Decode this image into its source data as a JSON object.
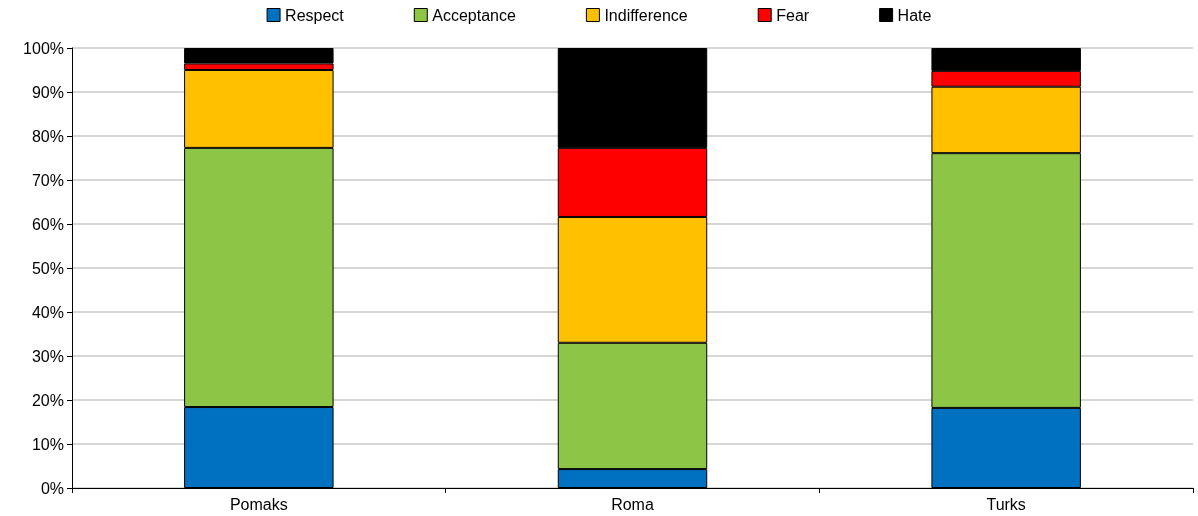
{
  "chart_data": {
    "type": "bar",
    "stacked": true,
    "categories": [
      "Pomaks",
      "Roma",
      "Turks"
    ],
    "series": [
      {
        "name": "Respect",
        "color": "#0070c0",
        "values": [
          18.4,
          4.3,
          18.2
        ]
      },
      {
        "name": "Acceptance",
        "color": "#8dc646",
        "values": [
          58.9,
          28.7,
          57.9
        ]
      },
      {
        "name": "Indifference",
        "color": "#ffc000",
        "values": [
          17.7,
          28.6,
          15.1
        ]
      },
      {
        "name": "Fear",
        "color": "#ff0000",
        "values": [
          1.5,
          15.7,
          3.6
        ]
      },
      {
        "name": "Hate",
        "color": "#000000",
        "values": [
          3.5,
          22.7,
          5.2
        ]
      }
    ],
    "ylim": [
      0,
      100
    ],
    "yticks": [
      {
        "value": 0,
        "label": "0%"
      },
      {
        "value": 10,
        "label": "10%"
      },
      {
        "value": 20,
        "label": "20%"
      },
      {
        "value": 30,
        "label": "30%"
      },
      {
        "value": 40,
        "label": "40%"
      },
      {
        "value": 50,
        "label": "50%"
      },
      {
        "value": 60,
        "label": "60%"
      },
      {
        "value": 70,
        "label": "70%"
      },
      {
        "value": 80,
        "label": "80%"
      },
      {
        "value": 90,
        "label": "90%"
      },
      {
        "value": 100,
        "label": "100%"
      }
    ],
    "grid": "y",
    "legend": "top"
  }
}
